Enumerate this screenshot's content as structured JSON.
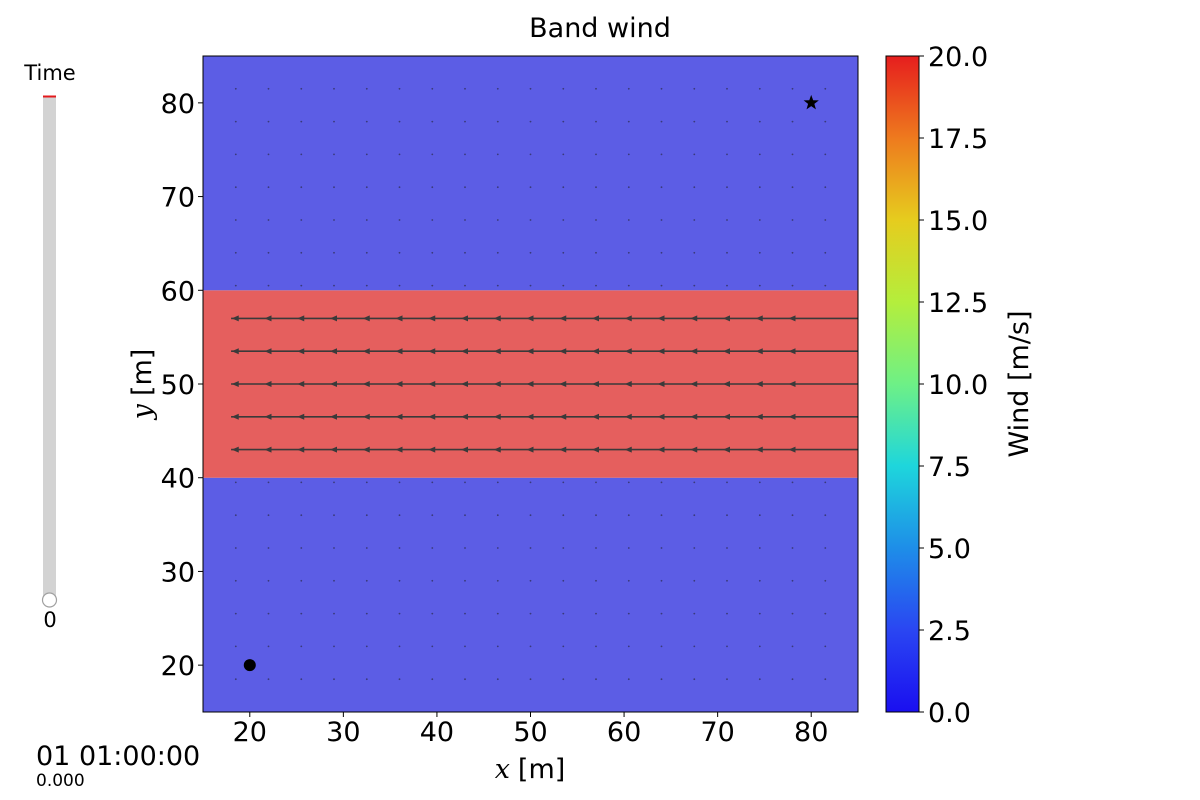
{
  "slider": {
    "label": "Time",
    "value_label": "0",
    "value": 0
  },
  "time_readout": {
    "timestamp": "01 01:00:00",
    "seconds": "0.000"
  },
  "chart_data": {
    "type": "heatmap",
    "title": "Band wind",
    "xlabel_var": "x",
    "xlabel_unit": "[m]",
    "ylabel_var": "y",
    "ylabel_unit": "[m]",
    "xlim": [
      15,
      85
    ],
    "ylim": [
      15,
      85
    ],
    "xticks": [
      20,
      30,
      40,
      50,
      60,
      70,
      80
    ],
    "yticks": [
      20,
      30,
      40,
      50,
      60,
      70,
      80
    ],
    "grid": false,
    "field_regions": [
      {
        "y_range": [
          15,
          40
        ],
        "wind": 2.5,
        "color": "#5c5de5"
      },
      {
        "y_range": [
          40,
          60
        ],
        "wind": 17.5,
        "color": "#e55f5e"
      },
      {
        "y_range": [
          60,
          85
        ],
        "wind": 2.5,
        "color": "#5c5de5"
      }
    ],
    "wind_direction": "west",
    "streamline_y": [
      43,
      46.5,
      50,
      53.5,
      57
    ],
    "streamline_x_range": [
      18,
      85
    ],
    "arrow_x": [
      18.5,
      22,
      25.5,
      29,
      32.5,
      36,
      39.5,
      43,
      46.5,
      50,
      53.5,
      57,
      60.5,
      64,
      67.5,
      71,
      74.5,
      78
    ],
    "dot_spacing": 3.5,
    "start_point": {
      "x": 20,
      "y": 20,
      "marker": "circle"
    },
    "goal_point": {
      "x": 80,
      "y": 80,
      "marker": "star"
    },
    "colorbar": {
      "label": "Wind [m/s]",
      "min": 0,
      "max": 20,
      "ticks": [
        "0.0",
        "2.5",
        "5.0",
        "7.5",
        "10.0",
        "12.5",
        "15.0",
        "17.5",
        "20.0"
      ],
      "colormap": "rainbow"
    }
  }
}
